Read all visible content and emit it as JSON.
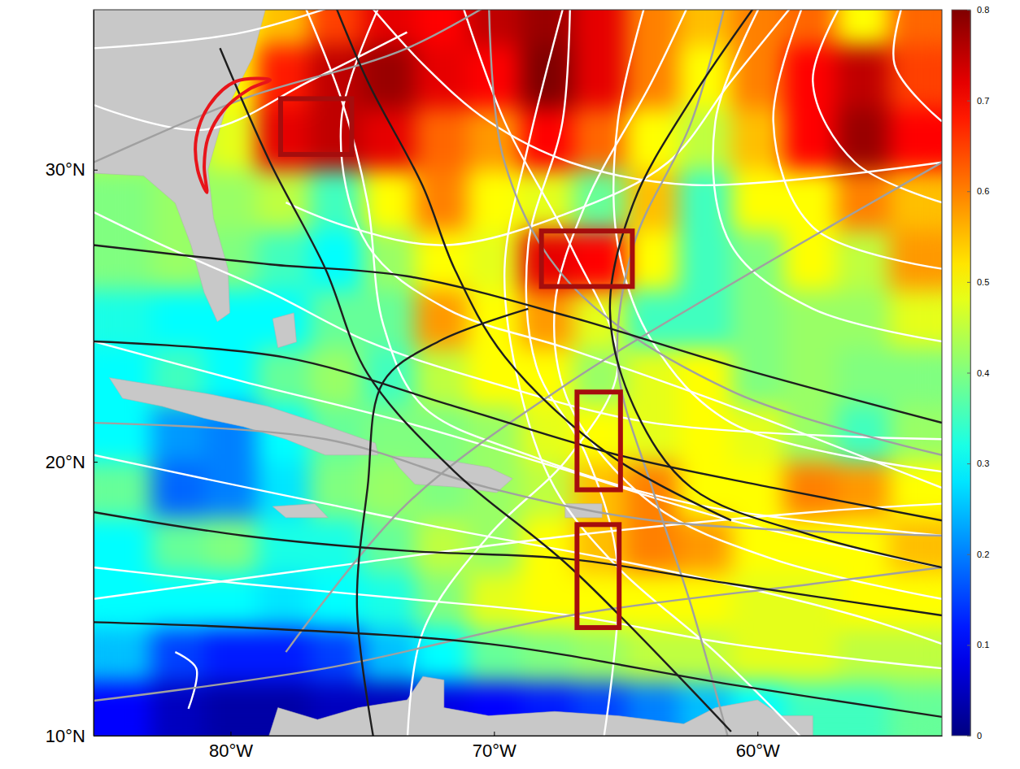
{
  "chart_data": {
    "type": "map",
    "xlim": [
      -85.2,
      -53.0
    ],
    "ylim": [
      10,
      35.1
    ],
    "xticks": [
      {
        "value": -80,
        "label": "80°W"
      },
      {
        "value": -70,
        "label": "70°W"
      },
      {
        "value": -60,
        "label": "60°W"
      }
    ],
    "yticks": [
      {
        "value": 10,
        "label": "10°N"
      },
      {
        "value": 20,
        "label": "20°N"
      },
      {
        "value": 30,
        "label": "30°N"
      }
    ],
    "colorbar": {
      "range": [
        0,
        0.8
      ],
      "ticks": [
        0,
        0.1,
        0.2,
        0.3,
        0.4,
        0.5,
        0.6,
        0.7,
        0.8
      ]
    },
    "cells": {
      "lon": [
        -84,
        -82,
        -80,
        -78,
        -76,
        -74,
        -72,
        -70,
        -68,
        -66,
        -64,
        -62,
        -60,
        -58,
        -56,
        -54
      ],
      "lat": [
        11,
        13,
        15,
        17,
        19,
        21,
        23,
        25,
        27,
        29,
        31,
        33,
        35
      ],
      "values": [
        [
          0.1,
          0.05,
          0.03,
          0.03,
          0.05,
          0.05,
          0.08,
          0.1,
          0.12,
          0.15,
          0.2,
          0.25,
          0.3,
          0.35,
          0.35,
          0.38
        ],
        [
          0.25,
          0.15,
          0.12,
          0.12,
          0.15,
          0.25,
          0.3,
          0.38,
          0.4,
          0.42,
          0.45,
          0.45,
          0.48,
          0.48,
          0.45,
          0.45
        ],
        [
          0.3,
          0.3,
          0.3,
          0.28,
          0.3,
          0.32,
          0.4,
          0.48,
          0.5,
          0.5,
          0.5,
          0.5,
          0.48,
          0.48,
          0.5,
          0.5
        ],
        [
          0.3,
          0.38,
          0.4,
          0.32,
          0.32,
          0.38,
          0.45,
          0.42,
          0.5,
          0.55,
          0.6,
          0.58,
          0.5,
          0.5,
          0.5,
          0.55
        ],
        [
          0.38,
          0.18,
          0.2,
          0.28,
          0.4,
          0.42,
          0.4,
          0.42,
          0.45,
          0.55,
          0.6,
          0.5,
          0.5,
          0.6,
          0.58,
          0.5
        ],
        [
          0.3,
          0.22,
          0.2,
          0.3,
          0.38,
          0.4,
          0.4,
          0.42,
          0.48,
          0.5,
          0.48,
          0.5,
          0.48,
          0.42,
          0.35,
          0.42
        ],
        [
          0.3,
          0.35,
          0.3,
          0.38,
          0.42,
          0.35,
          0.45,
          0.5,
          0.5,
          0.42,
          0.48,
          0.5,
          0.4,
          0.42,
          0.4,
          0.4
        ],
        [
          0.32,
          0.3,
          0.3,
          0.3,
          0.38,
          0.38,
          0.58,
          0.5,
          0.58,
          0.48,
          0.35,
          0.35,
          0.4,
          0.42,
          0.42,
          0.48
        ],
        [
          0.4,
          0.42,
          0.4,
          0.35,
          0.3,
          0.42,
          0.5,
          0.48,
          0.72,
          0.7,
          0.5,
          0.35,
          0.4,
          0.5,
          0.45,
          0.58
        ],
        [
          0.4,
          0.42,
          0.42,
          0.45,
          0.35,
          0.5,
          0.6,
          0.5,
          0.48,
          0.38,
          0.55,
          0.35,
          0.5,
          0.5,
          0.6,
          0.55
        ],
        [
          0.45,
          0.4,
          0.48,
          0.72,
          0.75,
          0.72,
          0.62,
          0.58,
          0.7,
          0.62,
          0.5,
          0.45,
          0.55,
          0.7,
          0.78,
          0.7
        ],
        [
          0.45,
          0.45,
          0.5,
          0.68,
          0.75,
          0.78,
          0.72,
          0.7,
          0.8,
          0.72,
          0.6,
          0.5,
          0.6,
          0.7,
          0.75,
          0.65
        ],
        [
          0.45,
          0.45,
          0.5,
          0.55,
          0.65,
          0.72,
          0.7,
          0.75,
          0.78,
          0.72,
          0.6,
          0.55,
          0.6,
          0.62,
          0.5,
          0.62
        ]
      ]
    },
    "land": [
      {
        "lon": [
          -85.5,
          -78.55,
          -79.17,
          -80.25,
          -80.86,
          -80.65,
          -80.1,
          -80.03,
          -80.5,
          -81.0,
          -81.5,
          -82.1,
          -83.3,
          -85.5
        ],
        "lat": [
          35.5,
          35.5,
          33.6,
          31.8,
          30.0,
          28.4,
          26.7,
          25.2,
          24.9,
          25.9,
          27.5,
          28.9,
          29.8,
          29.9
        ]
      },
      {
        "lon": [
          -84.6,
          -82.6,
          -80.7,
          -78.6,
          -76.7,
          -74.5,
          -74.4,
          -76.4,
          -77.9,
          -79.5,
          -81.0,
          -82.6,
          -84.1
        ],
        "lat": [
          22.96,
          22.66,
          22.37,
          21.96,
          21.38,
          20.66,
          20.24,
          20.24,
          20.8,
          21.24,
          21.54,
          21.96,
          22.24
        ]
      },
      {
        "lon": [
          -73.9,
          -72.1,
          -70.2,
          -69.3,
          -69.9,
          -71.5,
          -73.0,
          -73.6
        ],
        "lat": [
          20.2,
          20.1,
          19.8,
          19.4,
          18.9,
          19.1,
          19.2,
          19.8
        ]
      },
      {
        "lon": [
          -78.4,
          -76.8,
          -76.3,
          -77.9
        ],
        "lat": [
          18.4,
          18.5,
          18.0,
          18.0
        ]
      },
      {
        "lon": [
          -67.3,
          -65.9,
          -65.9,
          -67.3
        ],
        "lat": [
          18.5,
          18.5,
          18.0,
          18.0
        ]
      },
      {
        "lon": [
          -78.4,
          -77.6,
          -77.5,
          -78.2
        ],
        "lat": [
          25.0,
          25.2,
          24.2,
          24.0
        ]
      },
      {
        "lon": [
          -78.7,
          -78.2,
          -76.7,
          -75.15,
          -73.3,
          -72.7,
          -71.9,
          -71.9,
          -70.2,
          -67.7,
          -65.3,
          -62.8,
          -61.6,
          -60.0,
          -59.1,
          -57.9,
          -57.9,
          -78.7
        ],
        "lat": [
          9.5,
          11.04,
          10.6,
          11.04,
          11.33,
          12.2,
          12.07,
          11.04,
          10.74,
          10.9,
          10.74,
          10.44,
          11.04,
          11.33,
          10.74,
          10.74,
          9.5,
          9.5
        ]
      }
    ],
    "tracks": [
      {
        "color": "#ffffff",
        "lon": [
          -53,
          -61,
          -67.1,
          -71.8,
          -74.8,
          -75.8,
          -73.9
        ],
        "lat": [
          19.07,
          21.96,
          23.94,
          25.34,
          27.5,
          31.57,
          36
        ]
      },
      {
        "color": "#ffffff",
        "lon": [
          -53,
          -59.4,
          -64,
          -67.1,
          -67.7,
          -66.5,
          -64,
          -62.2
        ],
        "lat": [
          15.05,
          16.5,
          18.5,
          21.96,
          25.34,
          28.92,
          32.86,
          36
        ]
      },
      {
        "color": "#ffffff",
        "lon": [
          -53,
          -61,
          -67.1,
          -73.3,
          -79.5,
          -85.2
        ],
        "lat": [
          12.5,
          13.4,
          14.45,
          15.05,
          15.6,
          16.2
        ]
      },
      {
        "color": "#ffffff",
        "lon": [
          -53,
          -57.9,
          -61,
          -61.6,
          -59.4
        ],
        "lat": [
          24.22,
          25.34,
          27.5,
          31.57,
          36
        ]
      },
      {
        "color": "#ffffff",
        "lon": [
          -57.9,
          -61.6,
          -65.3,
          -67.7,
          -69,
          -69.6,
          -68.7,
          -67.1
        ],
        "lat": [
          9.5,
          13.1,
          16.2,
          19.07,
          22.5,
          26.7,
          30.8,
          36
        ]
      },
      {
        "color": "#ffffff",
        "lon": [
          -85.2,
          -79.5,
          -73.3,
          -67.1,
          -61,
          -53
        ],
        "lat": [
          24.22,
          22.82,
          21.38,
          19.65,
          17.9,
          16.2
        ]
      },
      {
        "color": "#ffffff",
        "lon": [
          -53,
          -57.9,
          -59.4,
          -57.9
        ],
        "lat": [
          26.7,
          28.1,
          31.57,
          36
        ]
      },
      {
        "color": "#ffffff",
        "lon": [
          -81.6,
          -81.3,
          -82.1
        ],
        "lat": [
          11.0,
          12.5,
          13.1
        ]
      },
      {
        "color": "#ffffff",
        "lon": [
          -85.2,
          -81.0,
          -76.4,
          -71.8,
          -64,
          -56.3,
          -53
        ],
        "lat": [
          20.24,
          19.4,
          18.5,
          17.6,
          16.2,
          14.45,
          13.4
        ]
      },
      {
        "color": "#ffffff",
        "lon": [
          -77.6,
          -75.8,
          -74.8,
          -74.2,
          -72.7,
          -68.7,
          -62.5,
          -53
        ],
        "lat": [
          36,
          32.3,
          28.92,
          24.78,
          21.96,
          20.24,
          18.5,
          17.35
        ]
      },
      {
        "color": "#ffffff",
        "lon": [
          -67.1,
          -67.4,
          -68.7,
          -68.4,
          -66.5,
          -65.3,
          -65.9
        ],
        "lat": [
          36,
          31.57,
          27.5,
          23.38,
          20.24,
          16.2,
          9.5
        ]
      },
      {
        "color": "#ffffff",
        "lon": [
          -85.2,
          -79.5,
          -73.3
        ],
        "lat": [
          33.9,
          34.4,
          36
        ]
      },
      {
        "color": "#ffffff",
        "lon": [
          -64,
          -65.3,
          -65.3,
          -64,
          -61,
          -53
        ],
        "lat": [
          36,
          31.57,
          27.5,
          24.22,
          21.38,
          19.65
        ]
      },
      {
        "color": "#ffffff",
        "lon": [
          -53,
          -56.3,
          -57.9,
          -56.3
        ],
        "lat": [
          28.92,
          30.24,
          32.86,
          36
        ]
      },
      {
        "color": "#ffffff",
        "lon": [
          -85.2,
          -76.4,
          -67.1,
          -57.9,
          -53
        ],
        "lat": [
          15.05,
          16.2,
          17.35,
          18.2,
          18.5
        ]
      },
      {
        "color": "#ffffff",
        "lon": [
          -73.3,
          -72.7,
          -70.2,
          -67.1,
          -65.3,
          -67.1,
          -69.6,
          -71.5
        ],
        "lat": [
          9.5,
          13.85,
          17.35,
          20.24,
          23.38,
          27.5,
          31.57,
          36
        ]
      },
      {
        "color": "#ffffff",
        "lon": [
          -53,
          -54.8,
          -54.2
        ],
        "lat": [
          31.57,
          33.4,
          36
        ]
      },
      {
        "color": "#ffffff",
        "lon": [
          -85.2,
          -82.6,
          -78.5,
          -74.8,
          -70.2,
          -64,
          -53
        ],
        "lat": [
          28.6,
          27.5,
          25.9,
          24.22,
          22.82,
          21.38,
          20.8
        ]
      },
      {
        "color": "#ffffff",
        "lon": [
          -75.5,
          -72.7,
          -70.2,
          -67.1,
          -62.5,
          -53
        ],
        "lat": [
          36,
          33.4,
          31.57,
          30.24,
          29.5,
          30.24
        ]
      },
      {
        "color": "#ffffff",
        "lon": [
          -57.9,
          -61,
          -63.4,
          -67.1,
          -71.8,
          -75.5,
          -77.9
        ],
        "lat": [
          36,
          32.86,
          30.24,
          28.6,
          27.5,
          28.1,
          28.92
        ]
      },
      {
        "color": "#ffffff",
        "lon": [
          -85.2,
          -81,
          -77,
          -73.3
        ],
        "lat": [
          32.1,
          31.3,
          32.86,
          34.4
        ]
      },
      {
        "color": "#a0a0a0",
        "lon": [
          -85.2,
          -76.4,
          -67.1,
          -57.9,
          -53
        ],
        "lat": [
          11.3,
          12.5,
          14.45,
          15.6,
          16.2
        ]
      },
      {
        "color": "#a0a0a0",
        "lon": [
          -85.2,
          -76.4,
          -70.2,
          -64.0,
          -53
        ],
        "lat": [
          21.38,
          20.8,
          19.07,
          17.9,
          17.35
        ]
      },
      {
        "color": "#a0a0a0",
        "lon": [
          -53,
          -61,
          -67.1,
          -73.3,
          -77.9
        ],
        "lat": [
          30.24,
          26.18,
          22.82,
          18.5,
          13.1
        ]
      },
      {
        "color": "#a0a0a0",
        "lon": [
          -61,
          -62.5,
          -64,
          -65.3,
          -64.7,
          -62.5,
          -61
        ],
        "lat": [
          9.5,
          14.75,
          19.07,
          23.38,
          27.5,
          31.57,
          36
        ]
      },
      {
        "color": "#a0a0a0",
        "lon": [
          -85.2,
          -79.5,
          -73.3,
          -68.7
        ],
        "lat": [
          30.24,
          32.3,
          33.9,
          36
        ]
      },
      {
        "color": "#a0a0a0",
        "lon": [
          -70.2,
          -69.6,
          -67.1,
          -61,
          -53
        ],
        "lat": [
          36,
          30.24,
          26.18,
          22.5,
          20.24
        ]
      },
      {
        "color": "#1e1e1e",
        "lon": [
          -53.0,
          -61.0,
          -67.1,
          -73.3,
          -78.5,
          -85.2
        ],
        "lat": [
          21.38,
          23.38,
          25.06,
          26.45,
          26.85,
          27.5
        ]
      },
      {
        "color": "#1e1e1e",
        "lon": [
          -53.0,
          -59.4,
          -65.3,
          -71.5,
          -77.9,
          -85.2
        ],
        "lat": [
          17.9,
          19.07,
          20.24,
          21.96,
          23.66,
          24.22
        ]
      },
      {
        "color": "#1e1e1e",
        "lon": [
          -53.0,
          -61.0,
          -67.1,
          -73.3,
          -79.5,
          -85.2
        ],
        "lat": [
          14.45,
          15.6,
          16.5,
          16.8,
          17.35,
          18.2
        ]
      },
      {
        "color": "#1e1e1e",
        "lon": [
          -53,
          -61,
          -70.2,
          -79.5,
          -85.2
        ],
        "lat": [
          10.7,
          11.9,
          13.4,
          14.0,
          14.2
        ]
      },
      {
        "color": "#1e1e1e",
        "lon": [
          -61.0,
          -65.6,
          -69.6,
          -71.5,
          -72.7,
          -74.8,
          -76.4
        ],
        "lat": [
          17.9,
          20.24,
          23.7,
          26.7,
          29.45,
          32.86,
          36
        ]
      },
      {
        "color": "#1e1e1e",
        "lon": [
          -53,
          -57.9,
          -62.5,
          -64.7,
          -65.6,
          -64.7,
          -62.5,
          -59.4
        ],
        "lat": [
          16.2,
          17.35,
          19.07,
          21.96,
          25.34,
          28.92,
          32.3,
          36
        ]
      },
      {
        "color": "#1e1e1e",
        "lon": [
          -74.5,
          -75.2,
          -74.8,
          -74.2,
          -72.1,
          -68.7
        ],
        "lat": [
          9.5,
          14.75,
          19.07,
          22.82,
          24.22,
          25.34
        ]
      },
      {
        "color": "#1e1e1e",
        "lon": [
          -80.4,
          -78.5,
          -76.4,
          -74.8,
          -71.5,
          -67.1,
          -61.0
        ],
        "lat": [
          33.9,
          30.24,
          26.7,
          23.1,
          19.65,
          16.2,
          10.15
        ]
      }
    ],
    "boxes": [
      {
        "lon": [
          -78.1,
          -75.4
        ],
        "lat": [
          30.5,
          32.3
        ]
      },
      {
        "lon": [
          -68.2,
          -64.75
        ],
        "lat": [
          26.1,
          27.97
        ]
      },
      {
        "lon": [
          -66.85,
          -65.2
        ],
        "lat": [
          19.0,
          22.46
        ]
      },
      {
        "lon": [
          -66.85,
          -65.25
        ],
        "lat": [
          14.0,
          17.75
        ]
      }
    ],
    "outline": {
      "lon": [
        -78.5,
        -79.8,
        -80.8,
        -81.3,
        -81.25,
        -80.9,
        -81.0,
        -80.85,
        -80.25,
        -79.3
      ],
      "lat": [
        32.9,
        32.85,
        32.1,
        31.05,
        30.0,
        29.25,
        30.1,
        31.05,
        31.95,
        32.6
      ]
    }
  }
}
